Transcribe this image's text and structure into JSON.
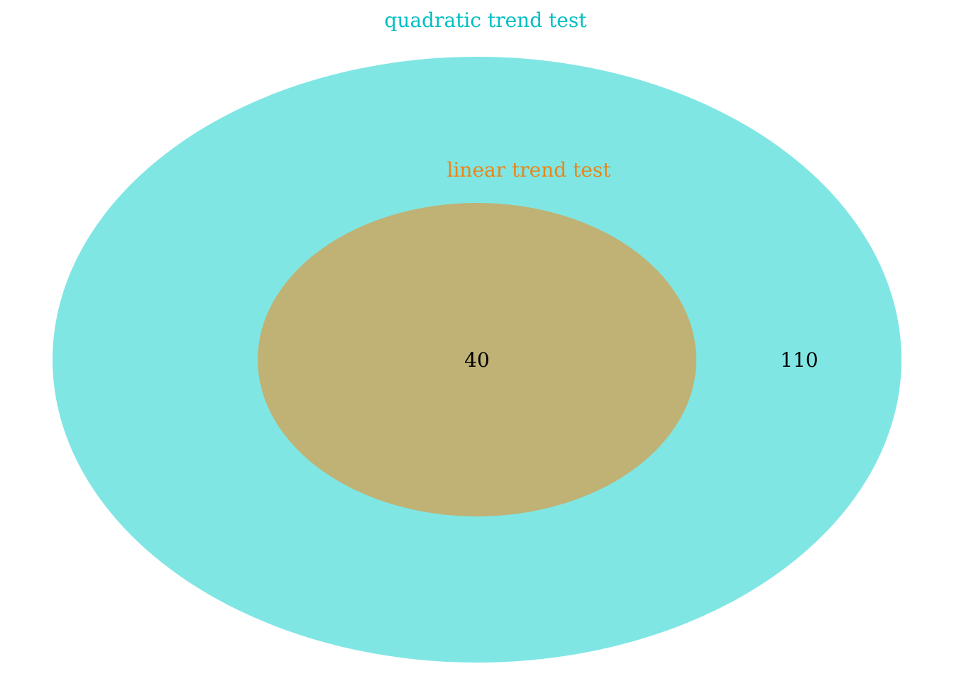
{
  "diagram": {
    "type": "venn",
    "sets": [
      {
        "name": "quadratic trend test",
        "fill_color": "#80e6e4",
        "label_color": "#00bfc4"
      },
      {
        "name": "linear trend test",
        "fill_color": "#bfb274",
        "label_color": "#e8861a"
      }
    ],
    "regions": {
      "quadratic_only": "110",
      "intersection": "40"
    }
  }
}
